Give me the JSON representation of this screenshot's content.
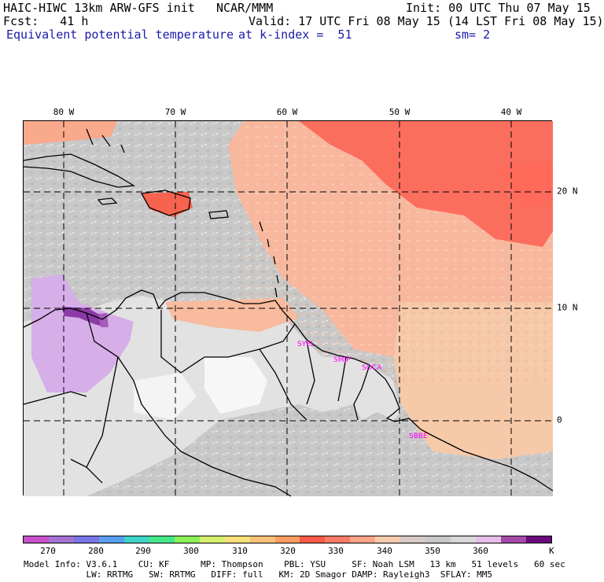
{
  "header": {
    "model_line": "HAIC-HIWC 13km ARW-GFS init",
    "org": "NCAR/MMM",
    "init": "Init: 00 UTC Thu 07 May 15",
    "fcst": "Fcst:   41 h",
    "valid": "Valid: 17 UTC Fri 08 May 15 (14 LST Fri 08 May 15)",
    "field": "Equivalent potential temperature",
    "level": "at k-index =  51",
    "smooth": "sm= 2"
  },
  "map": {
    "lon_labels": [
      "80 W",
      "70 W",
      "60 W",
      "50 W",
      "40 W"
    ],
    "lat_labels": [
      "20 N",
      "10 N",
      "0"
    ],
    "cities": [
      "SYEL",
      "SMJP",
      "SOCA",
      "SBBE"
    ],
    "colors": {
      "ocean_base": "#c8c8c8",
      "warm_high": "#ff6a5a",
      "warm_mid": "#fda48a",
      "warm_low": "#f6c9a8",
      "land_light": "#e4e4e4",
      "land_white": "#f7f7f7",
      "cold_purple": "#d2a6e6",
      "deep_purple": "#8c3aa6"
    }
  },
  "colorbar": {
    "labels": [
      "270",
      "280",
      "290",
      "300",
      "310",
      "320",
      "330",
      "340",
      "350",
      "360"
    ],
    "unit": "K",
    "colors": [
      "#c850c8",
      "#a472d2",
      "#7a74e6",
      "#5a9ef0",
      "#3ed4c6",
      "#46e68a",
      "#8cee58",
      "#d6f06e",
      "#f7e07a",
      "#f9c078",
      "#f99d62",
      "#f75a48",
      "#fb7a68",
      "#fca488",
      "#f6ccae",
      "#d8cac4",
      "#c8c8c8",
      "#d8d8d8",
      "#e6bfea",
      "#a54aa8",
      "#6a0a7a"
    ]
  },
  "footer": {
    "line1": "Model Info: V3.6.1    CU: KF      MP: Thompson    PBL: YSU     SF: Noah LSM   13 km   51 levels   60 sec",
    "line2": "            LW: RRTMG   SW: RRTMG   DIFF: full   KM: 2D Smagor DAMP: Rayleigh3  SFLAY: MM5"
  }
}
